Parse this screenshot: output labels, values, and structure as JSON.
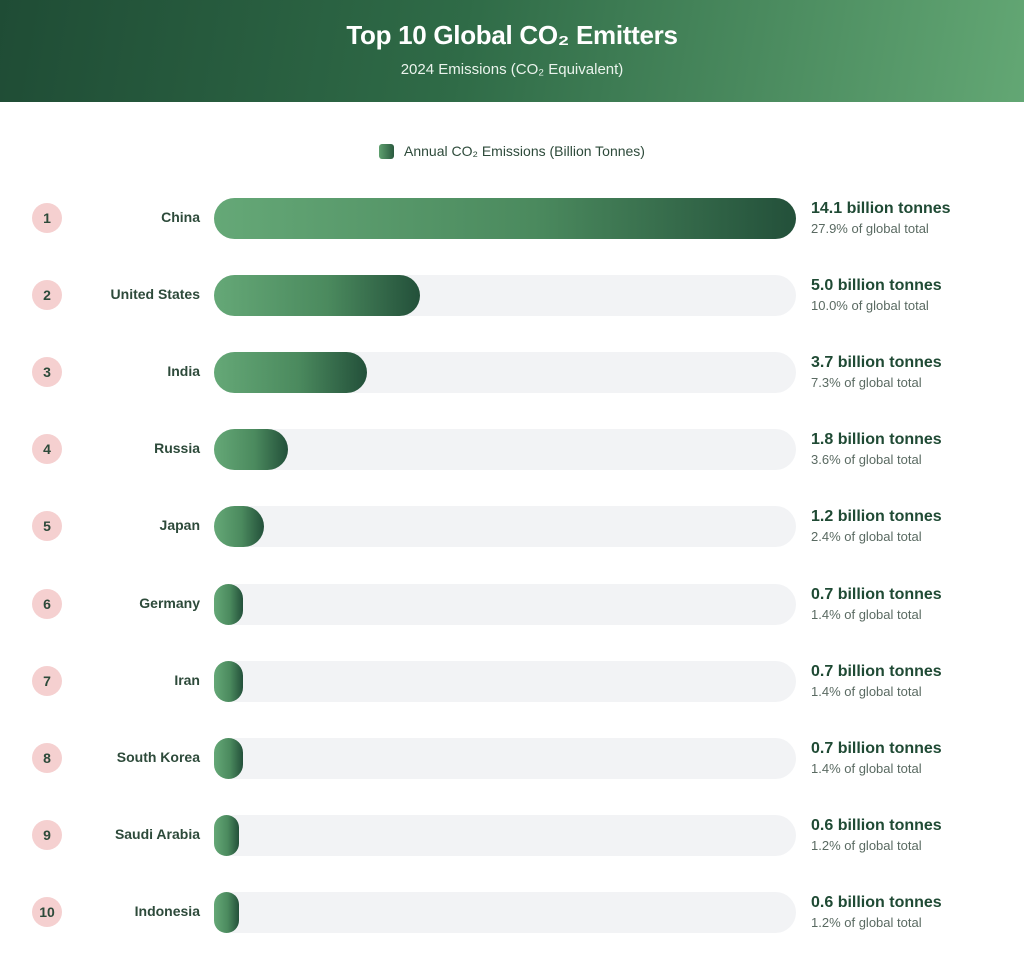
{
  "header": {
    "title": "Top 10 Global CO₂ Emitters",
    "subtitle": "2024 Emissions (CO₂ Equivalent)"
  },
  "legend": {
    "label": "Annual CO₂ Emissions (Billion Tonnes)"
  },
  "colors": {
    "header_dark": "#1f4c35",
    "header_light": "#63a774",
    "bar_light": "#65a877",
    "bar_dark": "#23503a",
    "rank_badge": "#f5d0d0",
    "track": "#f2f3f5"
  },
  "chart_data": {
    "type": "bar",
    "orientation": "horizontal",
    "title": "Top 10 Global CO₂ Emitters",
    "subtitle": "2024 Emissions (CO₂ Equivalent)",
    "series_name": "Annual CO₂ Emissions (Billion Tonnes)",
    "xlim": [
      0,
      14.1
    ],
    "grid": false,
    "legend_position": "top-center",
    "rows": [
      {
        "rank": "1",
        "country": "China",
        "value": 14.1,
        "value_label": "14.1 billion tonnes",
        "share_label": "27.9% of global total"
      },
      {
        "rank": "2",
        "country": "United States",
        "value": 5.0,
        "value_label": "5.0 billion tonnes",
        "share_label": "10.0% of global total"
      },
      {
        "rank": "3",
        "country": "India",
        "value": 3.7,
        "value_label": "3.7 billion tonnes",
        "share_label": "7.3% of global total"
      },
      {
        "rank": "4",
        "country": "Russia",
        "value": 1.8,
        "value_label": "1.8 billion tonnes",
        "share_label": "3.6% of global total"
      },
      {
        "rank": "5",
        "country": "Japan",
        "value": 1.2,
        "value_label": "1.2 billion tonnes",
        "share_label": "2.4% of global total"
      },
      {
        "rank": "6",
        "country": "Germany",
        "value": 0.7,
        "value_label": "0.7 billion tonnes",
        "share_label": "1.4% of global total"
      },
      {
        "rank": "7",
        "country": "Iran",
        "value": 0.7,
        "value_label": "0.7 billion tonnes",
        "share_label": "1.4% of global total"
      },
      {
        "rank": "8",
        "country": "South Korea",
        "value": 0.7,
        "value_label": "0.7 billion tonnes",
        "share_label": "1.4% of global total"
      },
      {
        "rank": "9",
        "country": "Saudi Arabia",
        "value": 0.6,
        "value_label": "0.6 billion tonnes",
        "share_label": "1.2% of global total"
      },
      {
        "rank": "10",
        "country": "Indonesia",
        "value": 0.6,
        "value_label": "0.6 billion tonnes",
        "share_label": "1.2% of global total"
      }
    ]
  }
}
